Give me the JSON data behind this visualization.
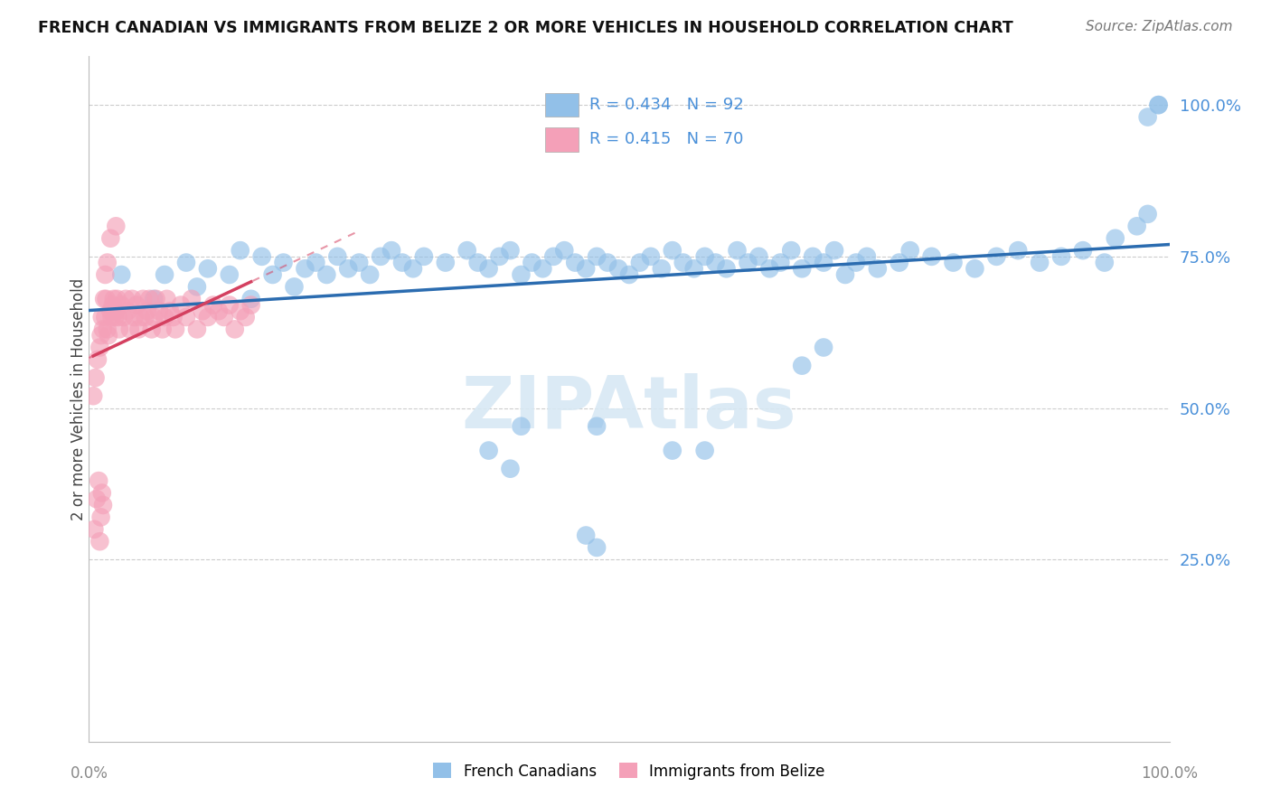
{
  "title": "FRENCH CANADIAN VS IMMIGRANTS FROM BELIZE 2 OR MORE VEHICLES IN HOUSEHOLD CORRELATION CHART",
  "source": "Source: ZipAtlas.com",
  "ylabel": "2 or more Vehicles in Household",
  "xlim": [
    0.0,
    100.0
  ],
  "ylim": [
    -5.0,
    108.0
  ],
  "yticks": [
    25.0,
    50.0,
    75.0,
    100.0
  ],
  "legend_blue_R": "0.434",
  "legend_blue_N": "92",
  "legend_pink_R": "0.415",
  "legend_pink_N": "70",
  "blue_color": "#92C0E8",
  "pink_color": "#F4A0B8",
  "blue_line_color": "#2B6CB0",
  "pink_line_color": "#D44060",
  "tick_color": "#4A90D9",
  "watermark_color": "#D8E8F4",
  "blue_scatter_x": [
    3,
    6,
    7,
    9,
    10,
    11,
    13,
    14,
    15,
    16,
    17,
    18,
    19,
    20,
    21,
    22,
    23,
    24,
    25,
    26,
    27,
    28,
    29,
    30,
    31,
    33,
    35,
    36,
    37,
    38,
    39,
    40,
    41,
    42,
    43,
    44,
    45,
    46,
    47,
    48,
    49,
    50,
    51,
    52,
    53,
    54,
    55,
    56,
    57,
    58,
    59,
    60,
    61,
    62,
    63,
    64,
    65,
    66,
    67,
    68,
    69,
    70,
    71,
    72,
    73,
    75,
    76,
    78,
    80,
    82,
    84,
    86,
    88,
    90,
    92,
    94,
    95,
    97,
    98,
    99,
    37,
    39,
    46,
    47,
    40,
    47,
    54,
    57,
    66,
    68,
    98,
    99
  ],
  "blue_scatter_y": [
    72,
    68,
    72,
    74,
    70,
    73,
    72,
    76,
    68,
    75,
    72,
    74,
    70,
    73,
    74,
    72,
    75,
    73,
    74,
    72,
    75,
    76,
    74,
    73,
    75,
    74,
    76,
    74,
    73,
    75,
    76,
    72,
    74,
    73,
    75,
    76,
    74,
    73,
    75,
    74,
    73,
    72,
    74,
    75,
    73,
    76,
    74,
    73,
    75,
    74,
    73,
    76,
    74,
    75,
    73,
    74,
    76,
    73,
    75,
    74,
    76,
    72,
    74,
    75,
    73,
    74,
    76,
    75,
    74,
    73,
    75,
    76,
    74,
    75,
    76,
    74,
    78,
    80,
    82,
    100,
    43,
    40,
    29,
    27,
    47,
    47,
    43,
    43,
    57,
    60,
    98,
    100
  ],
  "pink_scatter_x": [
    0.4,
    0.6,
    0.8,
    1.0,
    1.1,
    1.2,
    1.3,
    1.4,
    1.5,
    1.6,
    1.7,
    1.8,
    2.0,
    2.1,
    2.2,
    2.3,
    2.4,
    2.5,
    2.6,
    2.7,
    2.8,
    3.0,
    3.2,
    3.4,
    3.6,
    3.8,
    4.0,
    4.2,
    4.4,
    4.6,
    4.8,
    5.0,
    5.2,
    5.4,
    5.6,
    5.8,
    6.0,
    6.2,
    6.5,
    6.8,
    7.0,
    7.2,
    7.5,
    7.8,
    8.0,
    8.5,
    9.0,
    9.5,
    10.0,
    10.5,
    11.0,
    11.5,
    12.0,
    12.5,
    13.0,
    13.5,
    14.0,
    14.5,
    15.0,
    0.5,
    0.7,
    0.9,
    1.0,
    1.1,
    1.2,
    1.3,
    1.5,
    1.7,
    2.0,
    2.5
  ],
  "pink_scatter_y": [
    52,
    55,
    58,
    60,
    62,
    65,
    63,
    68,
    65,
    68,
    63,
    62,
    66,
    65,
    67,
    68,
    65,
    66,
    68,
    65,
    63,
    67,
    65,
    68,
    66,
    63,
    68,
    65,
    67,
    63,
    65,
    68,
    65,
    66,
    68,
    63,
    65,
    68,
    66,
    63,
    65,
    68,
    66,
    65,
    63,
    67,
    65,
    68,
    63,
    66,
    65,
    67,
    66,
    65,
    67,
    63,
    66,
    65,
    67,
    30,
    35,
    38,
    28,
    32,
    36,
    34,
    72,
    74,
    78,
    80
  ],
  "pink_outlier_x": [
    1.0
  ],
  "pink_outlier_y": [
    28
  ]
}
